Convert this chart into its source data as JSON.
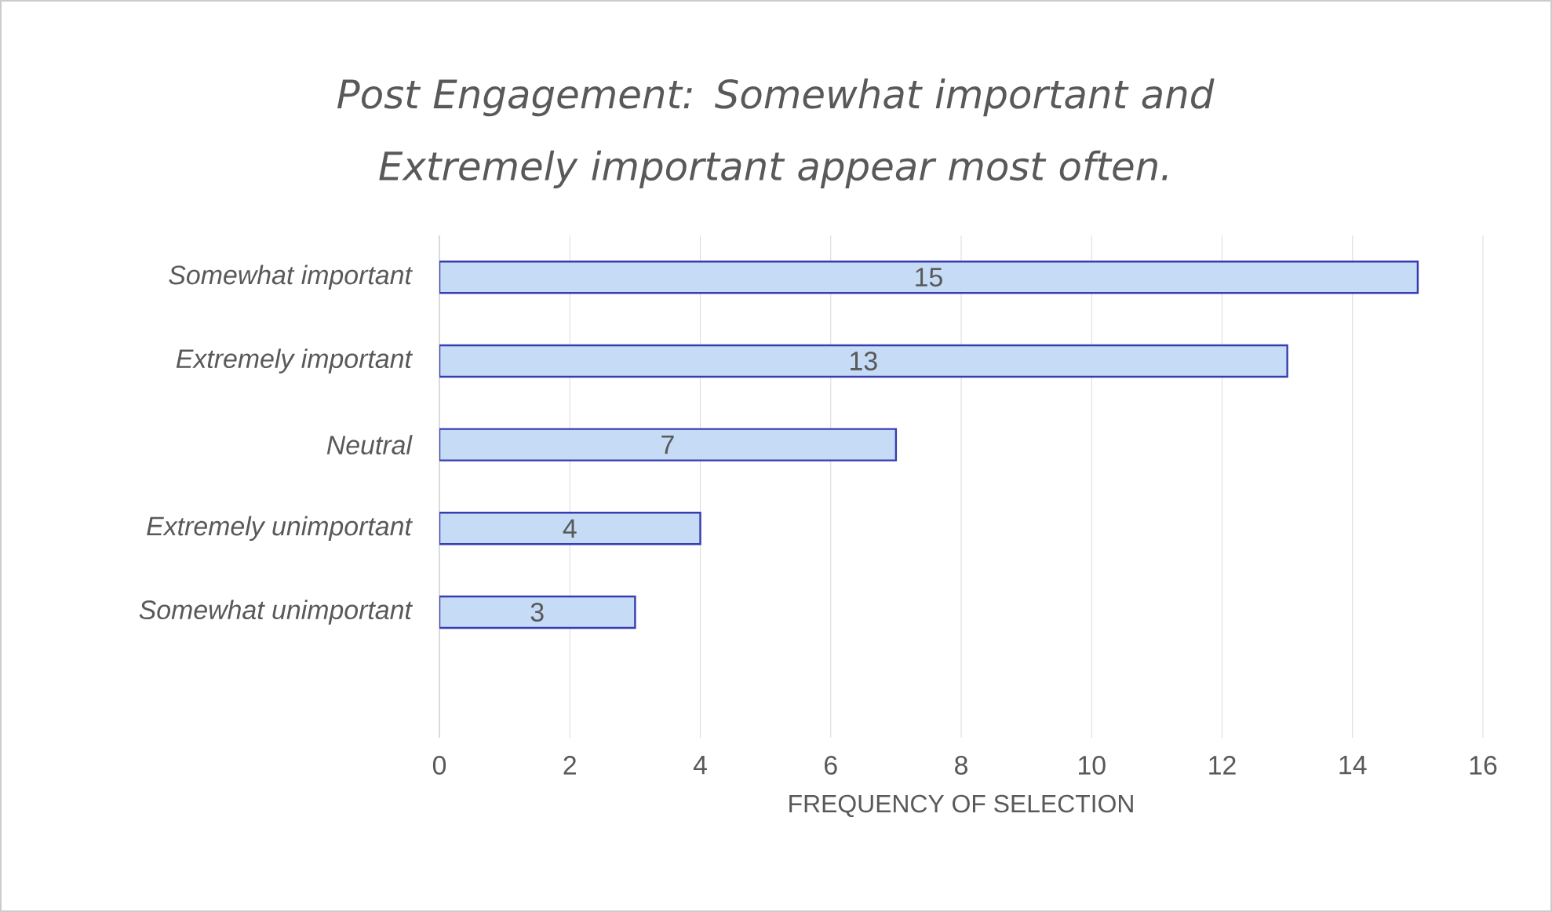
{
  "chart_data": {
    "type": "bar",
    "orientation": "horizontal",
    "title": "Post Engagement: Somewhat important and Extremely important appear most often.",
    "xlabel": "FREQUENCY OF SELECTION",
    "categories": [
      "Somewhat important",
      "Extremely important",
      "Neutral",
      "Extremely unimportant",
      "Somewhat unimportant"
    ],
    "values": [
      15,
      13,
      7,
      4,
      3
    ],
    "color": "#c6dbf5",
    "xlim": [
      0,
      16
    ],
    "xticks": [
      0,
      2,
      4,
      6,
      8,
      10,
      12,
      14,
      16
    ],
    "grid": "x",
    "data_labels": true
  }
}
